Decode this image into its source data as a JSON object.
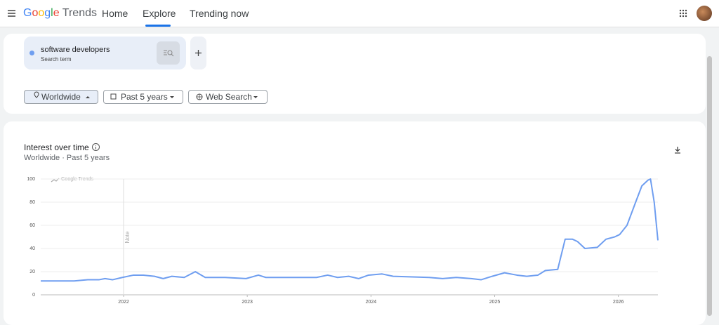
{
  "header": {
    "logo_brand": "Google",
    "logo_product": "Trends",
    "nav": [
      "Home",
      "Explore",
      "Trending now"
    ]
  },
  "search": {
    "label": "Search term"
  },
  "filters": [
    "Worldwide",
    "Past 5 years",
    "Web Search"
  ],
  "chart_data": {
    "type": "line",
    "title": "Interest over time",
    "subtitle": "Worldwide · Past 5 years",
    "watermark": "Google Trends",
    "annotations": [
      {
        "x": 2022,
        "text": "Note"
      }
    ],
    "x": [
      2021.33,
      2021.6,
      2021.71,
      2021.8,
      2021.85,
      2021.91,
      2021.99,
      2022.08,
      2022.16,
      2022.25,
      2022.32,
      2022.39,
      2022.49,
      2022.58,
      2022.66,
      2022.82,
      2022.99,
      2023.09,
      2023.15,
      2023.56,
      2023.65,
      2023.73,
      2023.82,
      2023.9,
      2023.98,
      2024.09,
      2024.18,
      2024.47,
      2024.58,
      2024.69,
      2024.81,
      2024.89,
      2024.98,
      2025.08,
      2025.18,
      2025.26,
      2025.35,
      2025.41,
      2025.51,
      2025.57,
      2025.63,
      2025.67,
      2025.73,
      2025.83,
      2025.9,
      2025.97,
      2026.01,
      2026.07,
      2026.14,
      2026.19,
      2026.24,
      2026.26,
      2026.29,
      2026.32
    ],
    "series": [
      {
        "name": "software developers",
        "color": "#6f9ef0",
        "values": [
          12,
          12,
          13,
          13,
          14,
          13,
          15,
          17,
          17,
          16,
          14,
          16,
          15,
          20,
          15,
          15,
          14,
          17,
          15,
          15,
          17,
          15,
          16,
          14,
          17,
          18,
          16,
          15,
          14,
          15,
          14,
          13,
          16,
          19,
          17,
          16,
          17,
          21,
          22,
          48,
          48,
          46,
          40,
          41,
          48,
          50,
          52,
          60,
          80,
          94,
          99,
          100,
          80,
          47
        ]
      }
    ],
    "xlim": [
      2021.33,
      2026.32
    ],
    "xticks": [
      2022,
      2023,
      2024,
      2025,
      2026
    ],
    "ylim": [
      0,
      100
    ],
    "yticks": [
      0,
      20,
      40,
      60,
      80,
      100
    ],
    "grid": true
  }
}
